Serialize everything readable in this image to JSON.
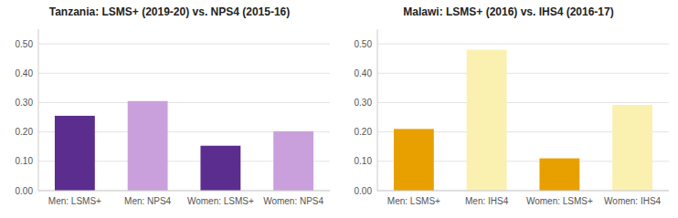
{
  "chart_data": [
    {
      "type": "bar",
      "title": "Tanzania: LSMS+ (2019-20) vs. NPS4 (2015-16)",
      "categories": [
        "Men: LSMS+",
        "Men: NPS4",
        "Women: LSMS+",
        "Women: NPS4"
      ],
      "values": [
        0.255,
        0.305,
        0.153,
        0.202
      ],
      "colors": [
        "#5b2d8e",
        "#c9a0dc",
        "#5b2d8e",
        "#c9a0dc"
      ],
      "ylim": [
        0,
        0.55
      ],
      "yticks": [
        {
          "value": 0.0,
          "label": "0.00"
        },
        {
          "value": 0.1,
          "label": "0.10"
        },
        {
          "value": 0.2,
          "label": "0.20"
        },
        {
          "value": 0.3,
          "label": "0.30"
        },
        {
          "value": 0.4,
          "label": "0.40"
        },
        {
          "value": 0.5,
          "label": "0.50"
        }
      ],
      "grid": true
    },
    {
      "type": "bar",
      "title": "Malawi: LSMS+ (2016) vs. IHS4 (2016-17)",
      "categories": [
        "Men: LSMS+",
        "Men: IHS4",
        "Women: LSMS+",
        "Women: IHS4"
      ],
      "values": [
        0.21,
        0.48,
        0.11,
        0.292
      ],
      "colors": [
        "#e8a000",
        "#faf0b0",
        "#e8a000",
        "#faf0b0"
      ],
      "ylim": [
        0,
        0.55
      ],
      "yticks": [
        {
          "value": 0.0,
          "label": "0.00"
        },
        {
          "value": 0.1,
          "label": "0.10"
        },
        {
          "value": 0.2,
          "label": "0.20"
        },
        {
          "value": 0.3,
          "label": "0.30"
        },
        {
          "value": 0.4,
          "label": "0.40"
        },
        {
          "value": 0.5,
          "label": "0.50"
        }
      ],
      "grid": true
    }
  ]
}
